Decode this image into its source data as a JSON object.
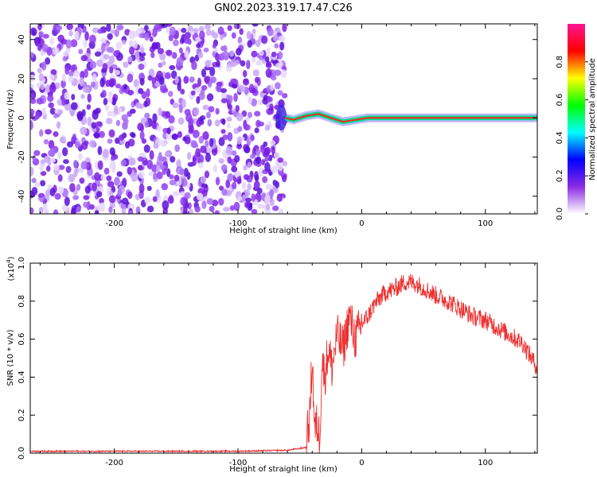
{
  "title": "GN02.2023.319.17.47.C26",
  "chart_data": [
    {
      "type": "heatmap",
      "xlabel": "Height of straight line (km)",
      "ylabel": "Frequency (Hz)",
      "xlim": [
        -268,
        142
      ],
      "ylim": [
        -49,
        48
      ],
      "xticks": [
        -200,
        -100,
        0,
        100
      ],
      "yticks": [
        -40,
        -20,
        0,
        20,
        40
      ],
      "colorbar": {
        "label": "Normalized spectral amplitude",
        "range": [
          0,
          1
        ],
        "ticks": [
          0.0,
          0.2,
          0.4,
          0.6,
          0.8
        ],
        "colormap": [
          "#ffffff",
          "#8a2be2",
          "#0000ff",
          "#00ffff",
          "#00ff00",
          "#ffff00",
          "#ff0000",
          "#ff1493"
        ]
      },
      "regions": [
        {
          "x_range": [
            -268,
            -62
          ],
          "f_range": [
            -49,
            48
          ],
          "amplitude": "0.0-0.2 (scattered noise)"
        },
        {
          "x_range": [
            -62,
            142
          ],
          "f_center": 0,
          "bandwidth_hz": 4,
          "amplitude": "0.6-1.0 (narrow line near 0 Hz)"
        }
      ],
      "line_wander": [
        {
          "x": -62,
          "f": 0
        },
        {
          "x": -55,
          "f": -1
        },
        {
          "x": -45,
          "f": 1
        },
        {
          "x": -35,
          "f": 2
        },
        {
          "x": -25,
          "f": 0
        },
        {
          "x": -15,
          "f": -2
        },
        {
          "x": -5,
          "f": -1
        },
        {
          "x": 5,
          "f": 0
        },
        {
          "x": 30,
          "f": 0
        },
        {
          "x": 90,
          "f": 0
        },
        {
          "x": 142,
          "f": 0
        }
      ]
    },
    {
      "type": "line",
      "xlabel": "Height of straight line (km)",
      "ylabel": "SNR (10 * v/v)",
      "yscale_label": "(x10",
      "yscale_exp": "4",
      "yscale_close": ")",
      "xlim": [
        -268,
        142
      ],
      "ylim": [
        0,
        1.0
      ],
      "xticks": [
        -200,
        -100,
        0,
        100
      ],
      "yticks": [
        0.0,
        0.2,
        0.4,
        0.6,
        0.8,
        1.0
      ],
      "color": "#ee3030",
      "series": [
        {
          "x": [
            -268,
            -200,
            -100,
            -60,
            -45,
            -42,
            -40,
            -38,
            -36,
            -34,
            -32,
            -30,
            -27,
            -24,
            -20,
            -15,
            -10,
            -5,
            0,
            5,
            10,
            15,
            20,
            25,
            30,
            35,
            40,
            45,
            50,
            55,
            60,
            70,
            80,
            90,
            100,
            110,
            120,
            130,
            142
          ],
          "y": [
            0.01,
            0.01,
            0.01,
            0.015,
            0.03,
            0.2,
            0.5,
            0.12,
            0.15,
            0.08,
            0.5,
            0.4,
            0.55,
            0.45,
            0.62,
            0.55,
            0.72,
            0.6,
            0.68,
            0.72,
            0.78,
            0.82,
            0.85,
            0.86,
            0.88,
            0.9,
            0.9,
            0.89,
            0.87,
            0.85,
            0.83,
            0.8,
            0.76,
            0.72,
            0.7,
            0.66,
            0.62,
            0.58,
            0.45
          ]
        }
      ]
    }
  ]
}
